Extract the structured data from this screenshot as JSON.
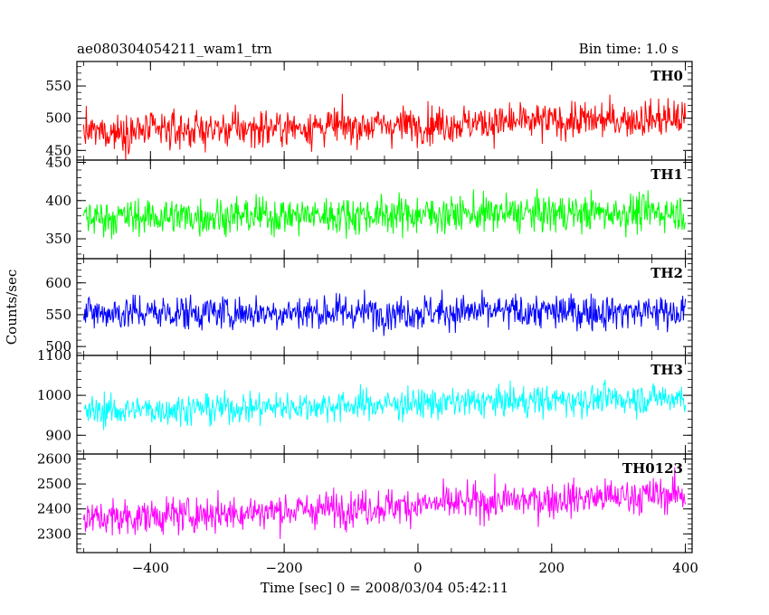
{
  "header": {
    "title": "ae080304054211_wam1_trn",
    "bin_time": "Bin time: 1.0 s"
  },
  "chart_data": {
    "type": "line",
    "title": "ae080304054211_wam1_trn",
    "xlabel": "Time [sec] 0 = 2008/03/04 05:42:11",
    "ylabel": "Counts/sec",
    "xlim": [
      -510,
      410
    ],
    "x_range": [
      -500,
      400
    ],
    "x_ticks": [
      -400,
      -200,
      0,
      200,
      400
    ],
    "panels": [
      {
        "name": "TH0",
        "color": "#ff0000",
        "ylim": [
          435,
          588
        ],
        "y_ticks": [
          450,
          500,
          550
        ],
        "mean_start": 478,
        "mean_end": 500,
        "amplitude": 26
      },
      {
        "name": "TH1",
        "color": "#00ff00",
        "ylim": [
          324,
          453
        ],
        "y_ticks": [
          350,
          400,
          450
        ],
        "mean_start": 378,
        "mean_end": 385,
        "amplitude": 22
      },
      {
        "name": "TH2",
        "color": "#0000ff",
        "ylim": [
          486,
          638
        ],
        "y_ticks": [
          500,
          550,
          600
        ],
        "mean_start": 553,
        "mean_end": 555,
        "amplitude": 25
      },
      {
        "name": "TH3",
        "color": "#00ffff",
        "ylim": [
          853,
          1100
        ],
        "y_ticks": [
          900,
          1000,
          1100
        ],
        "mean_start": 960,
        "mean_end": 995,
        "amplitude": 35
      },
      {
        "name": "TH0123",
        "color": "#ff00ff",
        "ylim": [
          2225,
          2620
        ],
        "y_ticks": [
          2300,
          2400,
          2500,
          2600
        ],
        "mean_start": 2360,
        "mean_end": 2460,
        "amplitude": 65
      }
    ]
  }
}
